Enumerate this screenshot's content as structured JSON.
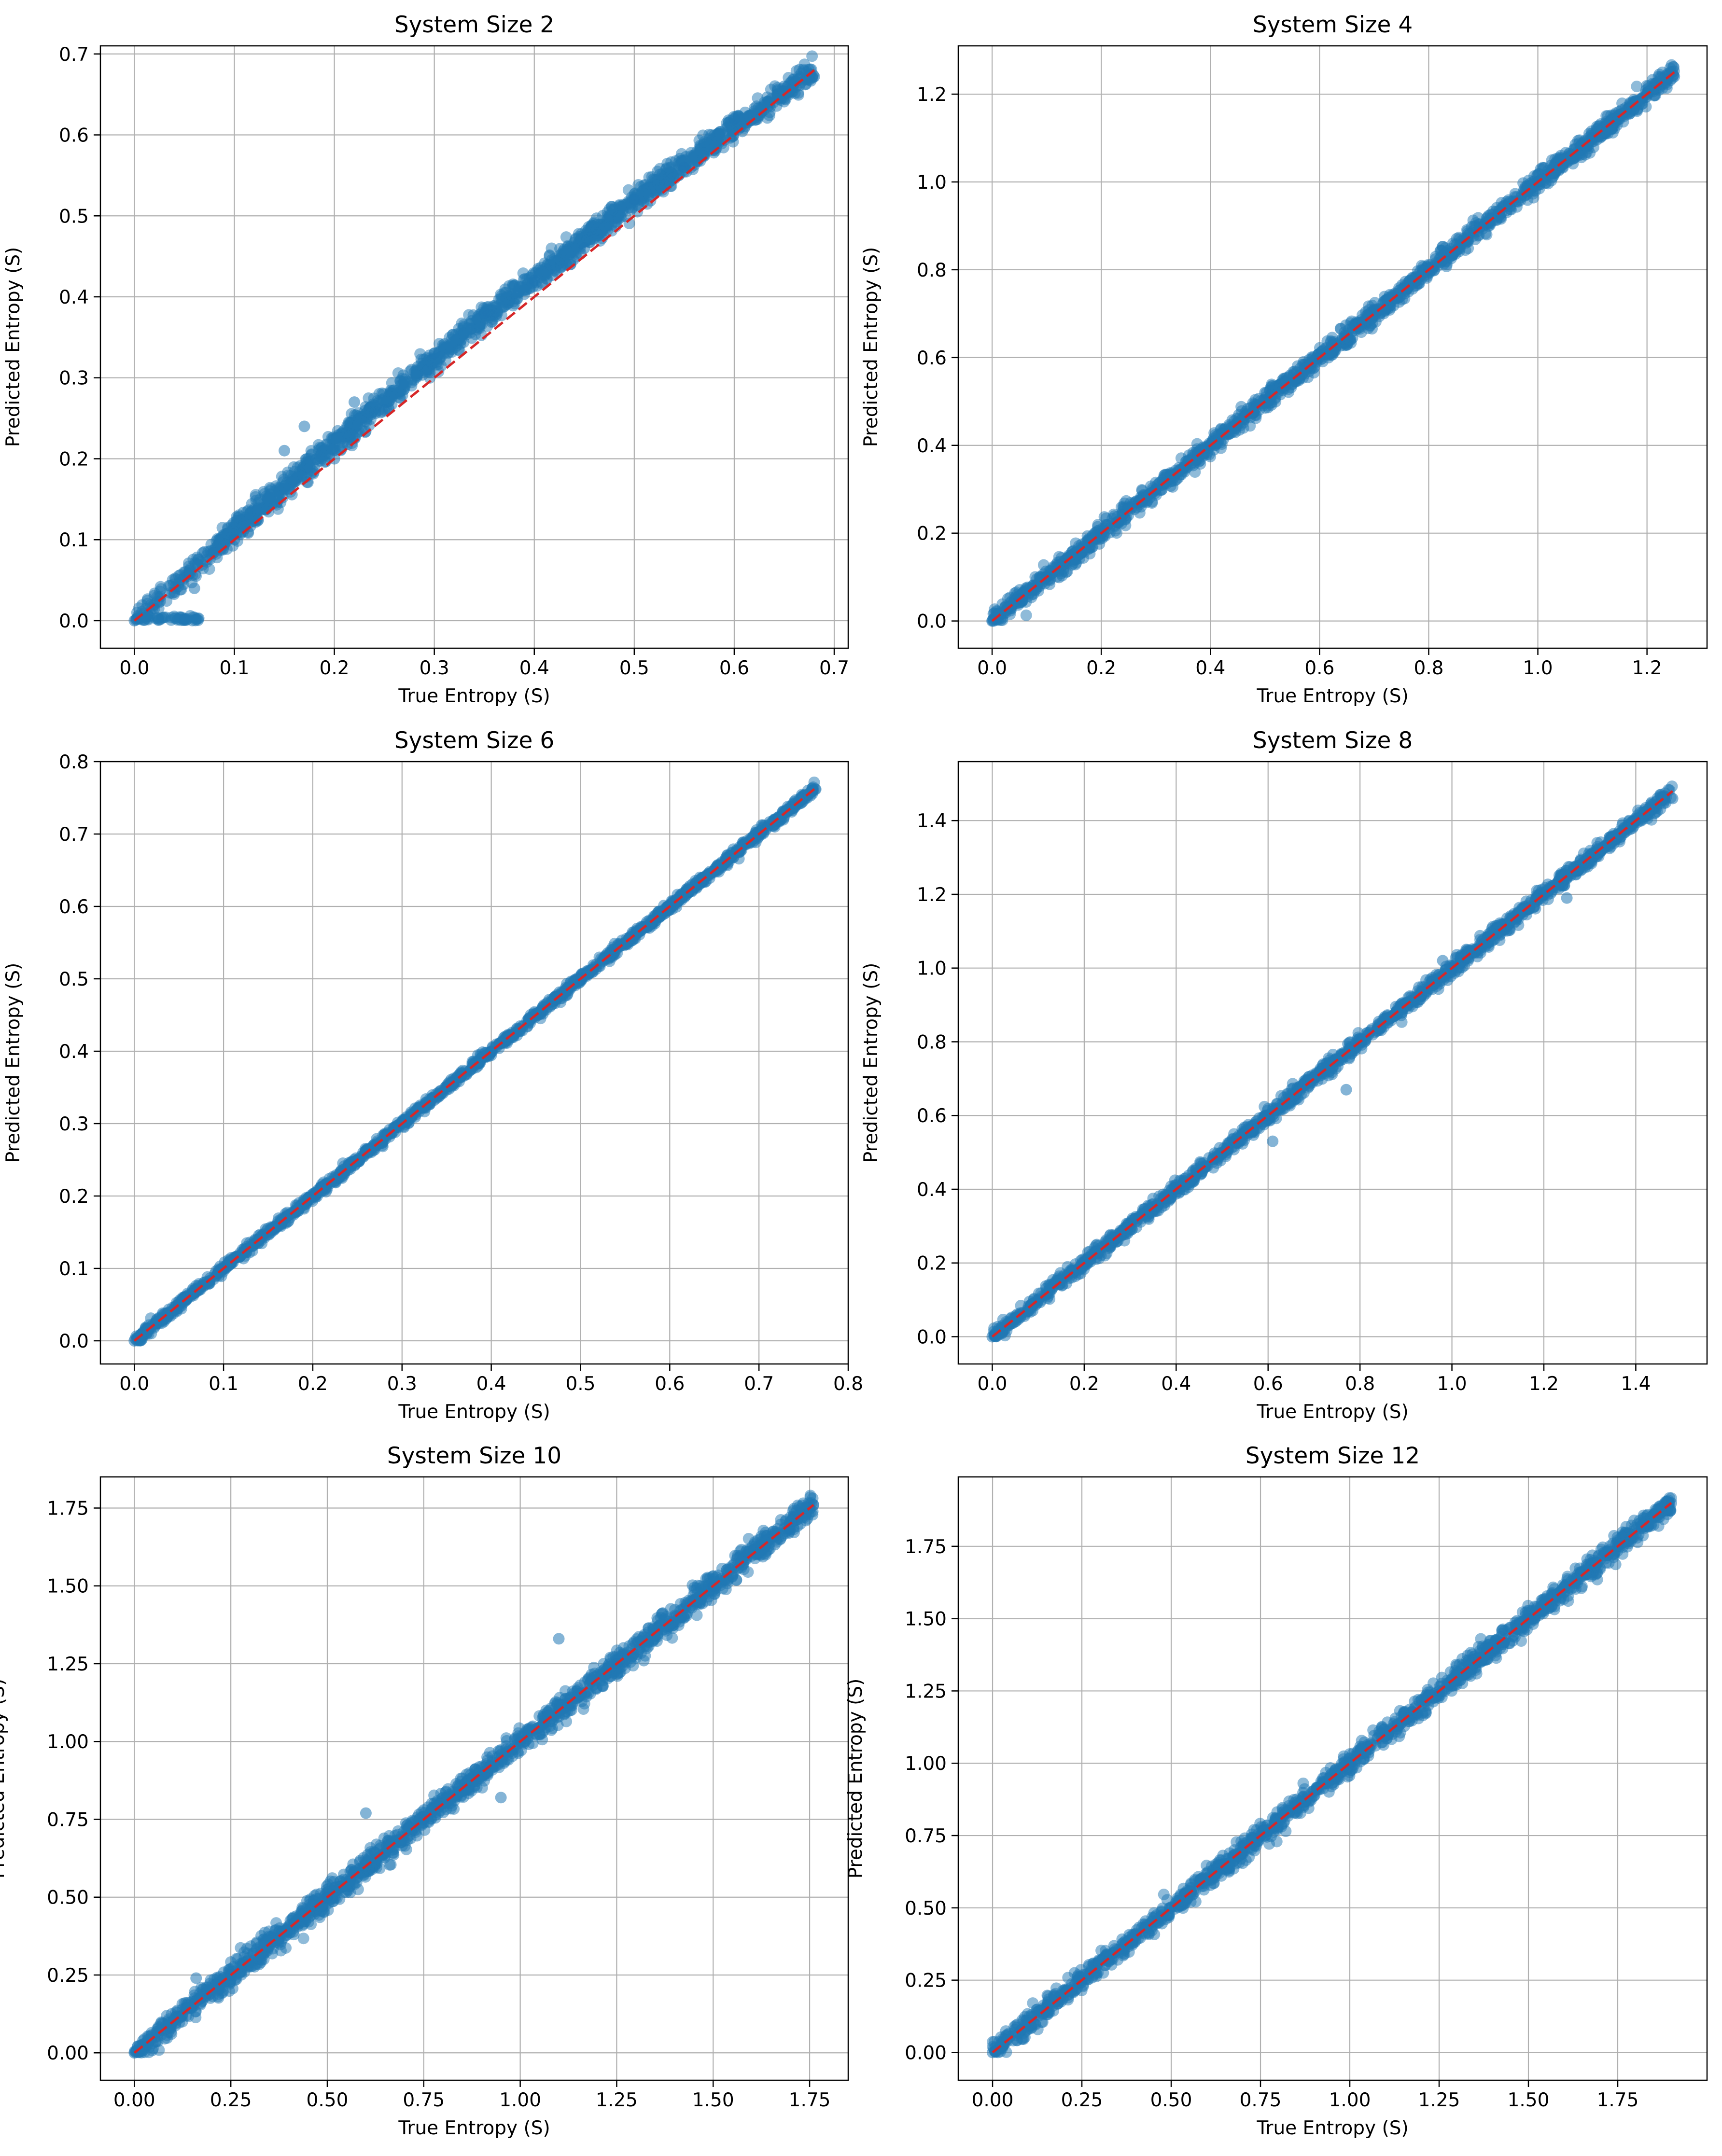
{
  "colors": {
    "points": "#1f77b4",
    "reference_line": "#d62728",
    "grid": "#b0b0b0",
    "axes": "#000000"
  },
  "chart_data": [
    {
      "type": "scatter",
      "title": "System Size 2",
      "xlabel": "True Entropy (S)",
      "ylabel": "Predicted Entropy (S)",
      "xlim": [
        -0.034,
        0.714
      ],
      "ylim": [
        -0.034,
        0.71
      ],
      "xticks": [
        0.0,
        0.1,
        0.2,
        0.3,
        0.4,
        0.5,
        0.6,
        0.7
      ],
      "xtick_labels": [
        "0.0",
        "0.1",
        "0.2",
        "0.3",
        "0.4",
        "0.5",
        "0.6",
        "0.7"
      ],
      "yticks": [
        0.0,
        0.1,
        0.2,
        0.3,
        0.4,
        0.5,
        0.6,
        0.7
      ],
      "ytick_labels": [
        "0.0",
        "0.1",
        "0.2",
        "0.3",
        "0.4",
        "0.5",
        "0.6",
        "0.7"
      ],
      "grid": true,
      "reference_line": [
        [
          0.0,
          0.0
        ],
        [
          0.68,
          0.68
        ]
      ],
      "points": [
        [
          0.0,
          0.0
        ],
        [
          0.02,
          0.015
        ],
        [
          0.04,
          0.035
        ],
        [
          0.05,
          0.002
        ],
        [
          0.06,
          0.04
        ],
        [
          0.07,
          0.085
        ],
        [
          0.1,
          0.1
        ],
        [
          0.15,
          0.21
        ],
        [
          0.17,
          0.24
        ],
        [
          0.2,
          0.2
        ],
        [
          0.22,
          0.27
        ],
        [
          0.25,
          0.26
        ],
        [
          0.3,
          0.33
        ],
        [
          0.35,
          0.38
        ],
        [
          0.4,
          0.42
        ],
        [
          0.45,
          0.46
        ],
        [
          0.5,
          0.52
        ],
        [
          0.55,
          0.56
        ],
        [
          0.6,
          0.62
        ],
        [
          0.65,
          0.66
        ],
        [
          0.68,
          0.672
        ]
      ]
    },
    {
      "type": "scatter",
      "title": "System Size 4",
      "xlabel": "True Entropy (S)",
      "ylabel": "Predicted Entropy (S)",
      "xlim": [
        -0.062,
        1.31
      ],
      "ylim": [
        -0.062,
        1.31
      ],
      "xticks": [
        0.0,
        0.2,
        0.4,
        0.6,
        0.8,
        1.0,
        1.2
      ],
      "xtick_labels": [
        "0.0",
        "0.2",
        "0.4",
        "0.6",
        "0.8",
        "1.0",
        "1.2"
      ],
      "yticks": [
        0.0,
        0.2,
        0.4,
        0.6,
        0.8,
        1.0,
        1.2
      ],
      "ytick_labels": [
        "0.0",
        "0.2",
        "0.4",
        "0.6",
        "0.8",
        "1.0",
        "1.2"
      ],
      "grid": true,
      "reference_line": [
        [
          0.0,
          0.0
        ],
        [
          1.25,
          1.25
        ]
      ],
      "points": [
        [
          0.0,
          0.0
        ],
        [
          0.05,
          0.05
        ],
        [
          0.1,
          0.1
        ],
        [
          0.2,
          0.2
        ],
        [
          0.3,
          0.3
        ],
        [
          0.4,
          0.4
        ],
        [
          0.5,
          0.52
        ],
        [
          0.6,
          0.6
        ],
        [
          0.7,
          0.71
        ],
        [
          0.8,
          0.8
        ],
        [
          0.9,
          0.9
        ],
        [
          1.0,
          1.0
        ],
        [
          1.1,
          1.1
        ],
        [
          1.2,
          1.2
        ],
        [
          1.25,
          1.24
        ]
      ]
    },
    {
      "type": "scatter",
      "title": "System Size 6",
      "xlabel": "True Entropy (S)",
      "ylabel": "Predicted Entropy (S)",
      "xlim": [
        -0.038,
        0.8
      ],
      "ylim": [
        -0.032,
        0.8
      ],
      "xticks": [
        0.0,
        0.1,
        0.2,
        0.3,
        0.4,
        0.5,
        0.6,
        0.7,
        0.8
      ],
      "xtick_labels": [
        "0.0",
        "0.1",
        "0.2",
        "0.3",
        "0.4",
        "0.5",
        "0.6",
        "0.7",
        "0.8"
      ],
      "yticks": [
        0.0,
        0.1,
        0.2,
        0.3,
        0.4,
        0.5,
        0.6,
        0.7,
        0.8
      ],
      "ytick_labels": [
        "0.0",
        "0.1",
        "0.2",
        "0.3",
        "0.4",
        "0.5",
        "0.6",
        "0.7",
        "0.8"
      ],
      "grid": true,
      "reference_line": [
        [
          0.0,
          0.0
        ],
        [
          0.765,
          0.765
        ]
      ],
      "points": [
        [
          0.0,
          0.0
        ],
        [
          0.05,
          0.05
        ],
        [
          0.1,
          0.1
        ],
        [
          0.2,
          0.2
        ],
        [
          0.3,
          0.3
        ],
        [
          0.4,
          0.4
        ],
        [
          0.5,
          0.5
        ],
        [
          0.6,
          0.6
        ],
        [
          0.7,
          0.7
        ],
        [
          0.76,
          0.76
        ]
      ]
    },
    {
      "type": "scatter",
      "title": "System Size 8",
      "xlabel": "True Entropy (S)",
      "ylabel": "Predicted Entropy (S)",
      "xlim": [
        -0.074,
        1.555
      ],
      "ylim": [
        -0.074,
        1.56
      ],
      "xticks": [
        0.0,
        0.2,
        0.4,
        0.6,
        0.8,
        1.0,
        1.2,
        1.4
      ],
      "xtick_labels": [
        "0.0",
        "0.2",
        "0.4",
        "0.6",
        "0.8",
        "1.0",
        "1.2",
        "1.4"
      ],
      "yticks": [
        0.0,
        0.2,
        0.4,
        0.6,
        0.8,
        1.0,
        1.2,
        1.4
      ],
      "ytick_labels": [
        "0.0",
        "0.2",
        "0.4",
        "0.6",
        "0.8",
        "1.0",
        "1.2",
        "1.4"
      ],
      "grid": true,
      "reference_line": [
        [
          0.0,
          0.0
        ],
        [
          1.48,
          1.48
        ]
      ],
      "points": [
        [
          0.0,
          0.0
        ],
        [
          0.1,
          0.1
        ],
        [
          0.2,
          0.2
        ],
        [
          0.4,
          0.4
        ],
        [
          0.6,
          0.6
        ],
        [
          0.61,
          0.53
        ],
        [
          0.77,
          0.67
        ],
        [
          0.8,
          0.8
        ],
        [
          0.98,
          1.02
        ],
        [
          1.0,
          1.0
        ],
        [
          1.2,
          1.2
        ],
        [
          1.25,
          1.19
        ],
        [
          1.4,
          1.4
        ],
        [
          1.48,
          1.46
        ]
      ]
    },
    {
      "type": "scatter",
      "title": "System Size 10",
      "xlabel": "True Entropy (S)",
      "ylabel": "Predicted Entropy (S)",
      "xlim": [
        -0.088,
        1.85
      ],
      "ylim": [
        -0.088,
        1.85
      ],
      "xticks": [
        0.0,
        0.25,
        0.5,
        0.75,
        1.0,
        1.25,
        1.5,
        1.75
      ],
      "xtick_labels": [
        "0.00",
        "0.25",
        "0.50",
        "0.75",
        "1.00",
        "1.25",
        "1.50",
        "1.75"
      ],
      "yticks": [
        0.0,
        0.25,
        0.5,
        0.75,
        1.0,
        1.25,
        1.5,
        1.75
      ],
      "ytick_labels": [
        "0.00",
        "0.25",
        "0.50",
        "0.75",
        "1.00",
        "1.25",
        "1.50",
        "1.75"
      ],
      "grid": true,
      "reference_line": [
        [
          0.0,
          0.0
        ],
        [
          1.76,
          1.76
        ]
      ],
      "points": [
        [
          0.0,
          0.0
        ],
        [
          0.16,
          0.24
        ],
        [
          0.25,
          0.25
        ],
        [
          0.5,
          0.5
        ],
        [
          0.6,
          0.77
        ],
        [
          0.75,
          0.75
        ],
        [
          0.95,
          0.82
        ],
        [
          1.0,
          1.0
        ],
        [
          1.1,
          1.33
        ],
        [
          1.25,
          1.25
        ],
        [
          1.5,
          1.5
        ],
        [
          1.7,
          1.68
        ],
        [
          1.76,
          1.76
        ]
      ]
    },
    {
      "type": "scatter",
      "title": "System Size 12",
      "xlabel": "True Entropy (S)",
      "ylabel": "Predicted Entropy (S)",
      "xlim": [
        -0.096,
        2.0
      ],
      "ylim": [
        -0.096,
        1.99
      ],
      "xticks": [
        0.0,
        0.25,
        0.5,
        0.75,
        1.0,
        1.25,
        1.5,
        1.75
      ],
      "xtick_labels": [
        "0.00",
        "0.25",
        "0.50",
        "0.75",
        "1.00",
        "1.25",
        "1.50",
        "1.75"
      ],
      "yticks": [
        0.0,
        0.25,
        0.5,
        0.75,
        1.0,
        1.25,
        1.5,
        1.75
      ],
      "ytick_labels": [
        "0.00",
        "0.25",
        "0.50",
        "0.75",
        "1.00",
        "1.25",
        "1.50",
        "1.75"
      ],
      "grid": true,
      "reference_line": [
        [
          0.0,
          0.0
        ],
        [
          1.9,
          1.9
        ]
      ],
      "points": [
        [
          0.0,
          0.0
        ],
        [
          0.25,
          0.25
        ],
        [
          0.5,
          0.5
        ],
        [
          0.75,
          0.75
        ],
        [
          1.0,
          1.0
        ],
        [
          1.25,
          1.25
        ],
        [
          1.5,
          1.5
        ],
        [
          1.75,
          1.75
        ],
        [
          1.9,
          1.9
        ]
      ]
    }
  ]
}
